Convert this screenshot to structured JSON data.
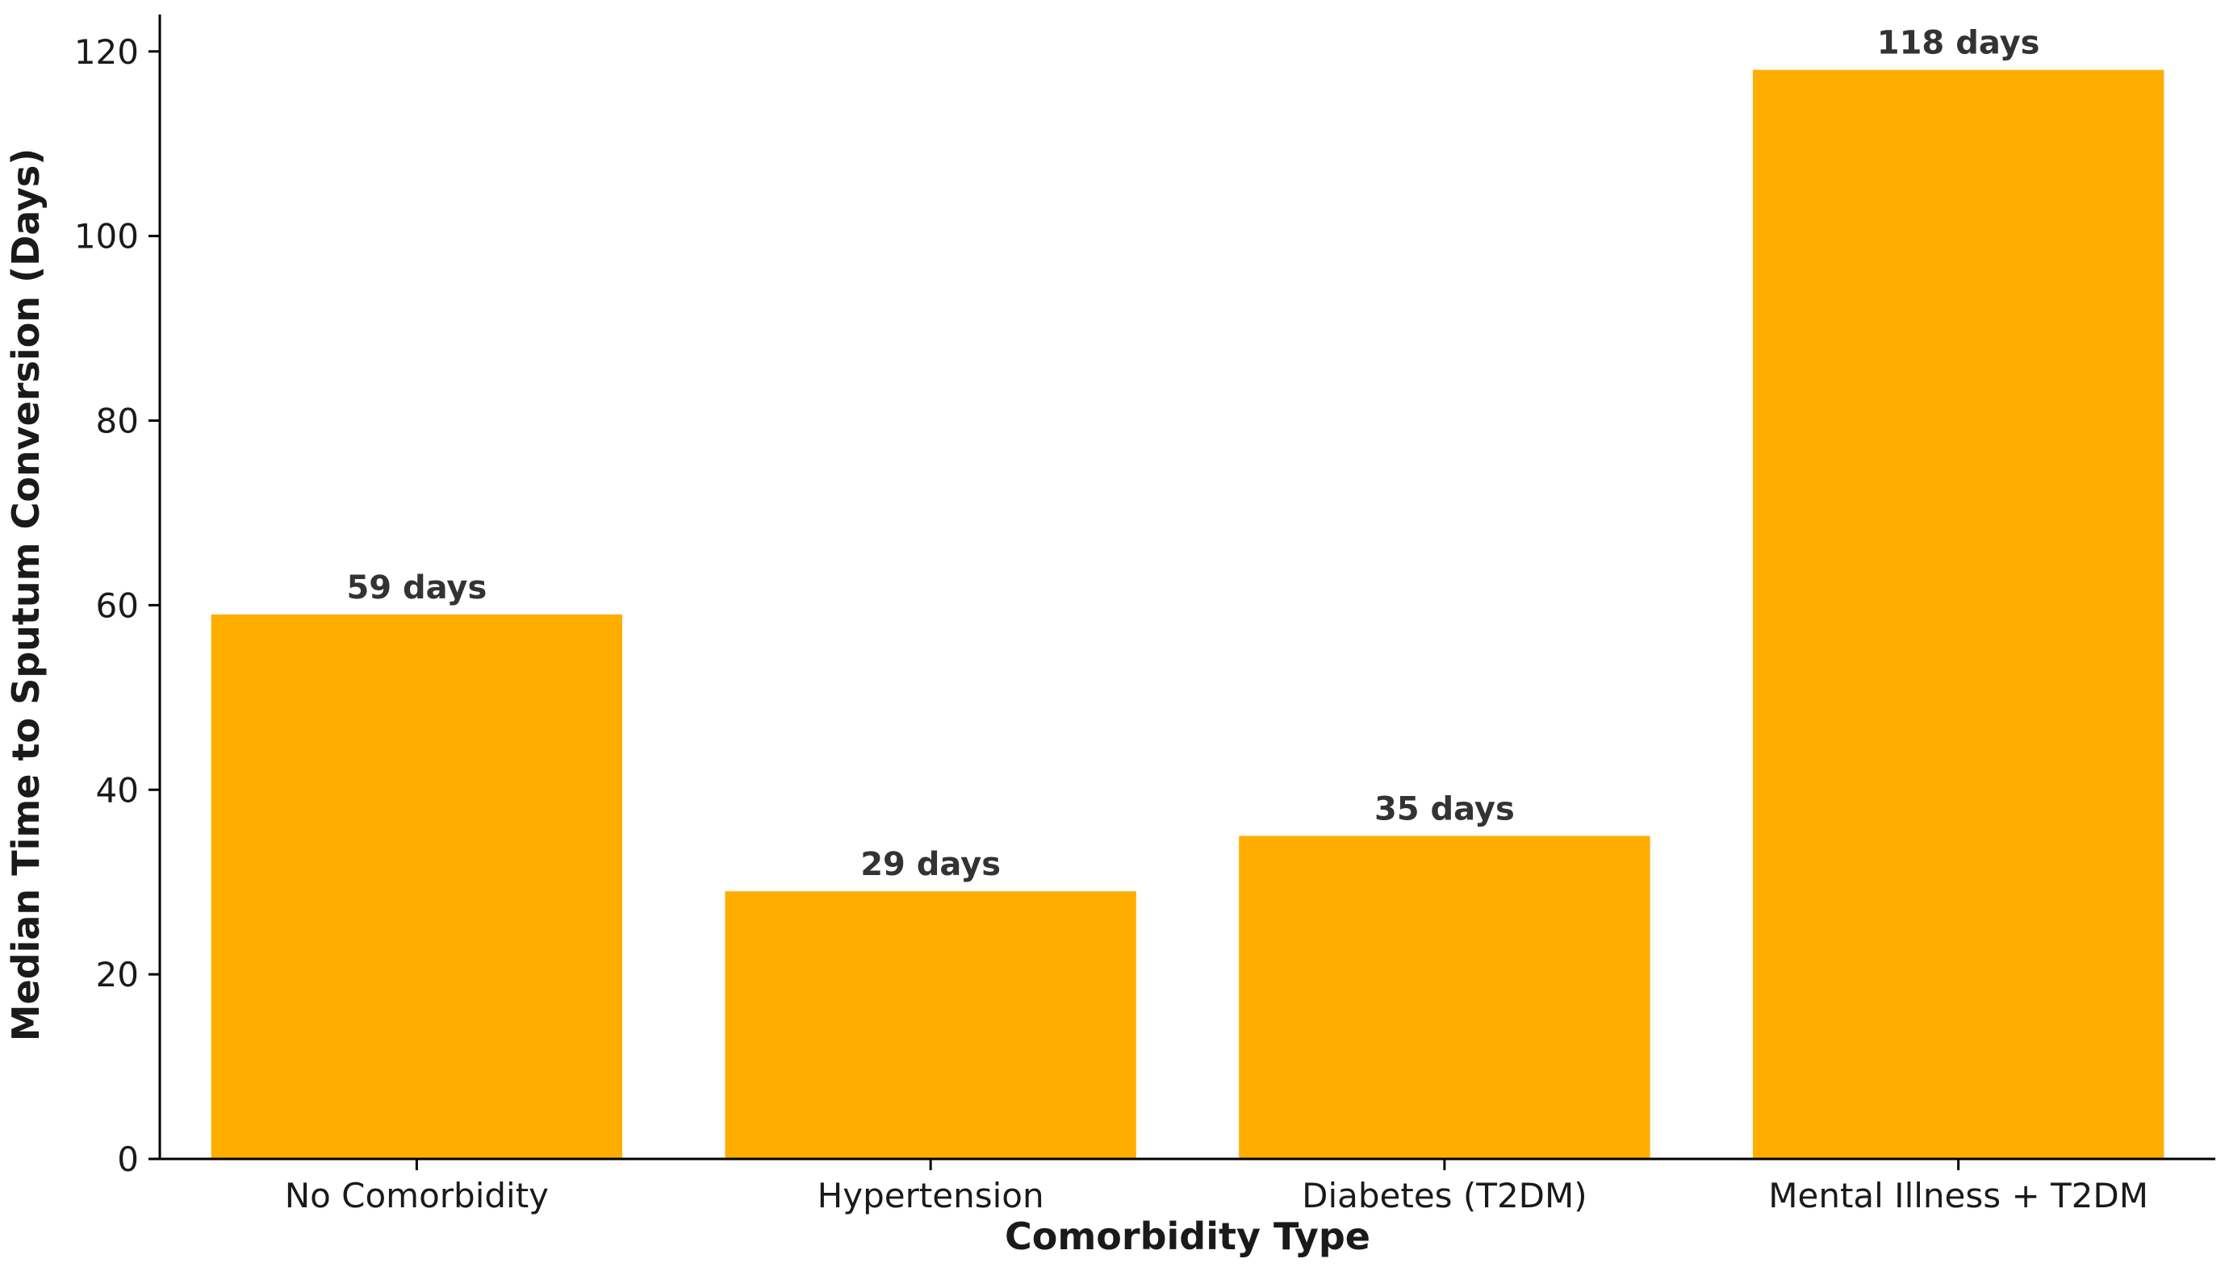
{
  "chart_data": {
    "type": "bar",
    "title": "",
    "xlabel": "Comorbidity Type",
    "ylabel": "Median Time to Sputum Conversion (Days)",
    "categories": [
      "No Comorbidity",
      "Hypertension",
      "Diabetes (T2DM)",
      "Mental Illness + T2DM"
    ],
    "values": [
      59,
      29,
      35,
      118
    ],
    "data_labels": [
      "59 days",
      "29 days",
      "35 days",
      "118 days"
    ],
    "yticks": [
      0,
      20,
      40,
      60,
      80,
      100,
      120
    ],
    "ylim": [
      0,
      124
    ],
    "grid": false,
    "legend": "none",
    "bar_color": "#FFAE00"
  }
}
